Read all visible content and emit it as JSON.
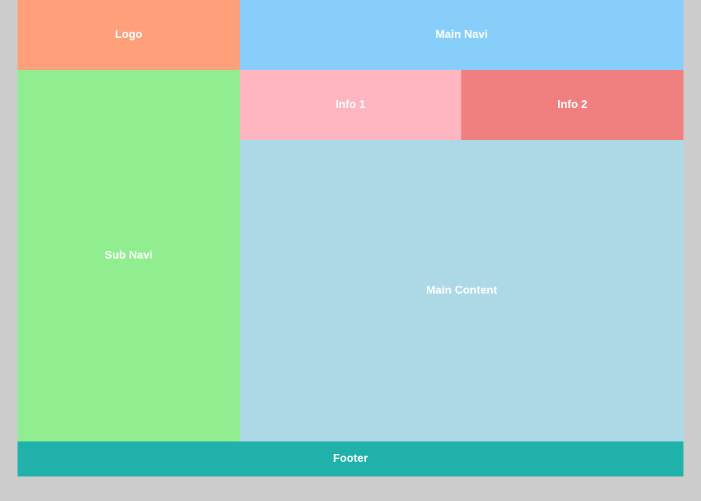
{
  "page": {
    "background": "#cccccc"
  },
  "layout": {
    "logo": {
      "label": "Logo",
      "color": "#ffa07a"
    },
    "main_navi": {
      "label": "Main Navi",
      "color": "#87cefa"
    },
    "sub_navi": {
      "label": "Sub Navi",
      "color": "#90ee90"
    },
    "info1": {
      "label": "Info 1",
      "color": "#ffb6c1"
    },
    "info2": {
      "label": "Info 2",
      "color": "#f08080"
    },
    "main_content": {
      "label": "Main Content",
      "color": "#add8e6"
    },
    "footer": {
      "label": "Footer",
      "color": "#20b2aa"
    }
  }
}
